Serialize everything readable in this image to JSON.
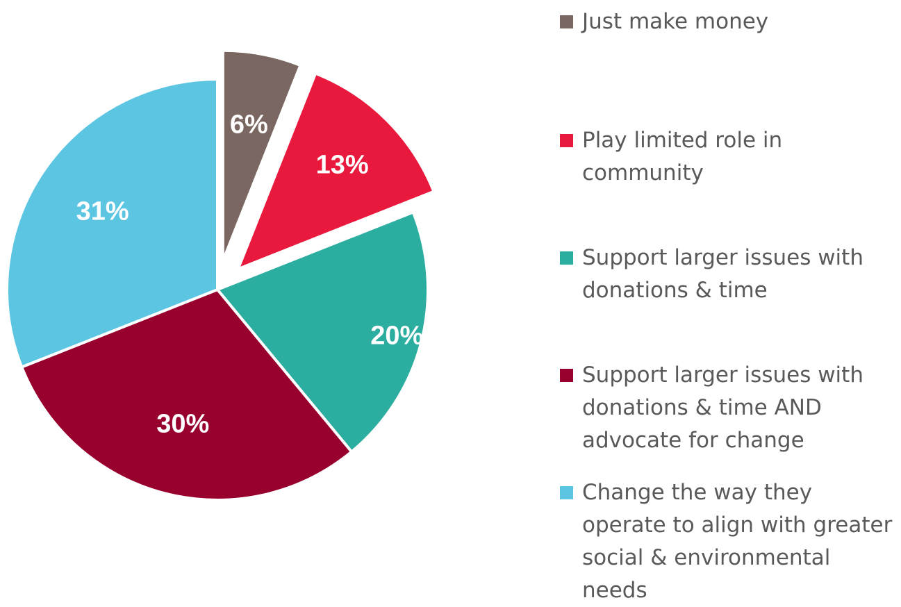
{
  "chart_data": {
    "type": "pie",
    "title": "",
    "legend_position": "right",
    "slices": [
      {
        "label": "Just make money",
        "value": 6,
        "value_label": "6%",
        "color": "#7a6761",
        "exploded": true
      },
      {
        "label": "Play limited role in community",
        "value": 13,
        "value_label": "13%",
        "color": "#e8193c",
        "exploded": true
      },
      {
        "label": "Support larger issues with donations & time",
        "value": 20,
        "value_label": "20%",
        "color": "#2bada0",
        "exploded": false
      },
      {
        "label": "Support larger issues with donations & time AND advocate for change",
        "value": 30,
        "value_label": "30%",
        "color": "#98002e",
        "exploded": false
      },
      {
        "label": "Change the way they operate to align with greater social & environmental needs",
        "value": 31,
        "value_label": "31%",
        "color": "#5bc5e2",
        "exploded": false
      }
    ]
  }
}
